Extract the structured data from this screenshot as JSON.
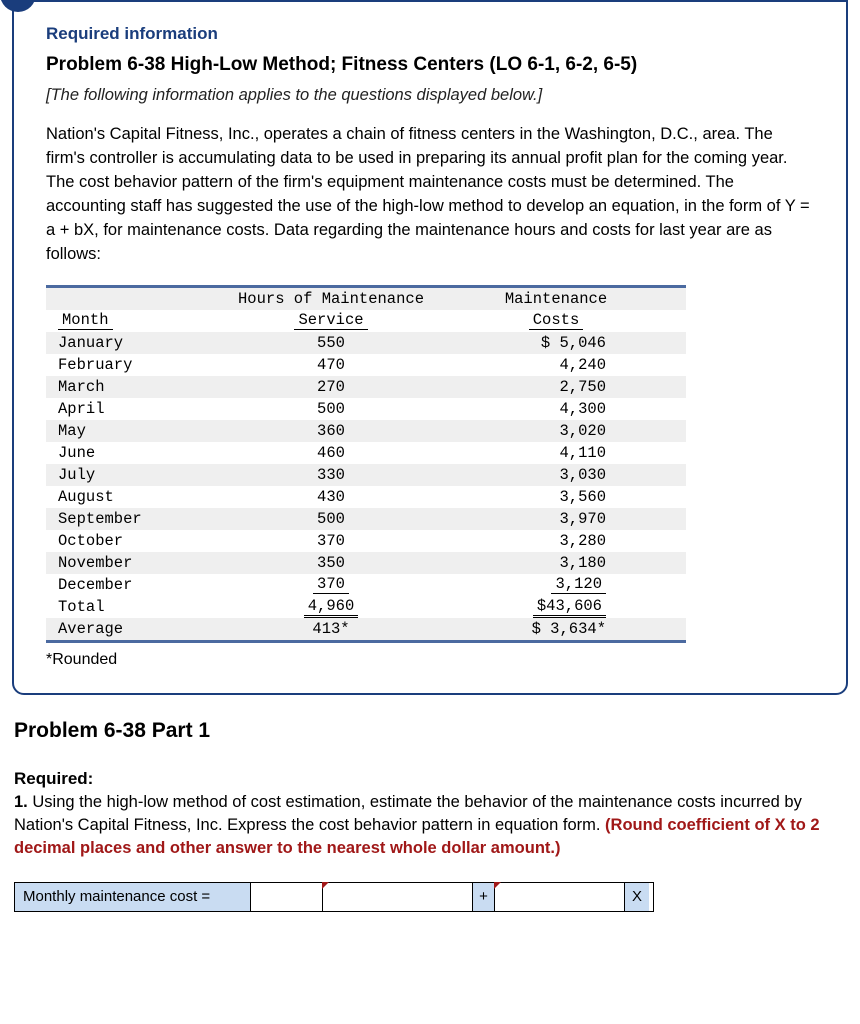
{
  "info": {
    "required_label": "Required information",
    "title": "Problem 6-38 High-Low Method; Fitness Centers (LO 6-1, 6-2, 6-5)",
    "italic_note": "[The following information applies to the questions displayed below.]",
    "paragraph": "Nation's Capital Fitness, Inc., operates a chain of fitness centers in the Washington, D.C., area. The firm's controller is accumulating data to be used in preparing its annual profit plan for the coming year. The cost behavior pattern of the firm's equipment maintenance costs must be determined. The accounting staff has suggested the use of the high-low method to develop an equation, in the form of  Y = a + bX, for maintenance costs. Data regarding the maintenance hours and costs for last year are as follows:"
  },
  "table": {
    "headers": {
      "month": "Month",
      "hours_l1": "Hours of Maintenance",
      "hours_l2": "Service",
      "costs_l1": "Maintenance",
      "costs_l2": "Costs"
    },
    "rows": [
      {
        "month": "January",
        "hours": "550",
        "costs": "$ 5,046"
      },
      {
        "month": "February",
        "hours": "470",
        "costs": "4,240"
      },
      {
        "month": "March",
        "hours": "270",
        "costs": "2,750"
      },
      {
        "month": "April",
        "hours": "500",
        "costs": "4,300"
      },
      {
        "month": "May",
        "hours": "360",
        "costs": "3,020"
      },
      {
        "month": "June",
        "hours": "460",
        "costs": "4,110"
      },
      {
        "month": "July",
        "hours": "330",
        "costs": "3,030"
      },
      {
        "month": "August",
        "hours": "430",
        "costs": "3,560"
      },
      {
        "month": "September",
        "hours": "500",
        "costs": "3,970"
      },
      {
        "month": "October",
        "hours": "370",
        "costs": "3,280"
      },
      {
        "month": "November",
        "hours": "350",
        "costs": "3,180"
      },
      {
        "month": "December",
        "hours": "370",
        "costs": "3,120"
      }
    ],
    "total": {
      "label": "Total",
      "hours": "4,960",
      "costs": "$43,606"
    },
    "average": {
      "label": "Average",
      "hours": "413*",
      "costs": "$ 3,634*"
    },
    "footnote": "*Rounded"
  },
  "part": {
    "title": "Problem 6-38 Part 1",
    "required_label": "Required:",
    "q1_prefix": "1. ",
    "q1_text": "Using the high-low method of cost estimation, estimate the behavior of the maintenance costs incurred by Nation's Capital Fitness, Inc. Express the cost behavior pattern in equation form.",
    "round_note": "(Round coefficient of X to 2 decimal places and other answer to the nearest whole dollar amount.)"
  },
  "answer": {
    "label": "Monthly maintenance cost =",
    "plus": "+",
    "x": "X"
  },
  "colors": {
    "border_blue": "#1a3d7c",
    "table_accent": "#4b6aa0",
    "row_alt": "#efefef",
    "answer_bg": "#c9dcf2",
    "warn_red": "#a01818"
  }
}
